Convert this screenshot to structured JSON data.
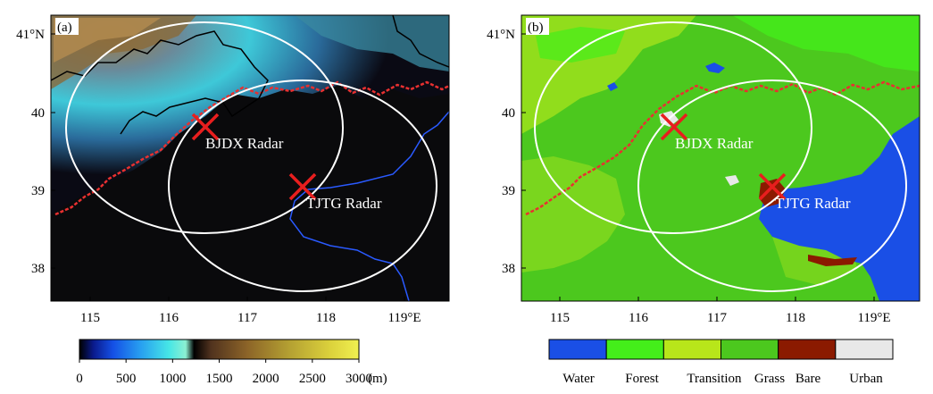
{
  "panel_a": {
    "label": "(a)",
    "radars": [
      {
        "name": "BJDX Radar",
        "lon": 116.47,
        "lat": 39.81
      },
      {
        "name": "TJTG Radar",
        "lon": 117.72,
        "lat": 39.05
      }
    ],
    "x_ticks": [
      "115",
      "116",
      "117",
      "118",
      "119°E"
    ],
    "y_ticks": [
      "41°N",
      "40",
      "39",
      "38"
    ],
    "colorbar": {
      "ticks": [
        "0",
        "500",
        "1000",
        "1500",
        "2000",
        "2500",
        "3000"
      ],
      "unit": "(m)",
      "range": [
        0,
        3000
      ]
    }
  },
  "panel_b": {
    "label": "(b)",
    "radars": [
      {
        "name": "BJDX Radar",
        "lon": 116.47,
        "lat": 39.81
      },
      {
        "name": "TJTG Radar",
        "lon": 117.72,
        "lat": 39.05
      }
    ],
    "x_ticks": [
      "115",
      "116",
      "117",
      "118",
      "119°E"
    ],
    "y_ticks": [
      "41°N",
      "40",
      "39",
      "38"
    ],
    "legend": [
      {
        "label": "Water",
        "color": "#1a4fe6"
      },
      {
        "label": "Forest",
        "color": "#44ee1a"
      },
      {
        "label": "Transition",
        "color": "#b8e61a"
      },
      {
        "label": "Grass",
        "color": "#4cc81e"
      },
      {
        "label": "Bare",
        "color": "#8b1a00"
      },
      {
        "label": "Urban",
        "color": "#e8e8e8"
      }
    ]
  }
}
